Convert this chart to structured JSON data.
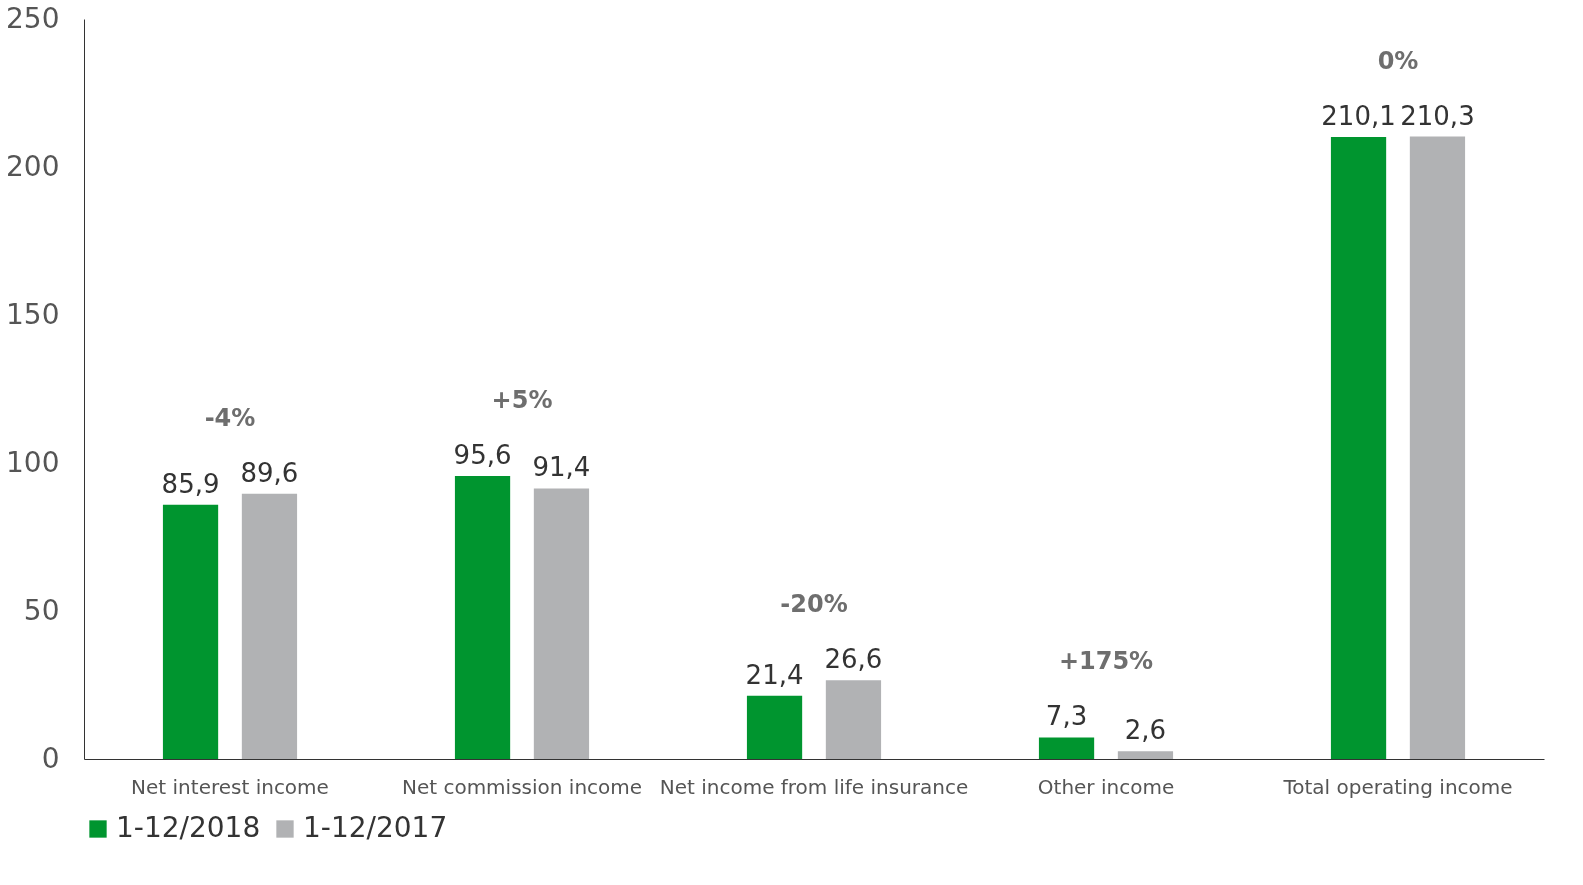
{
  "chart_data": {
    "type": "bar",
    "categories": [
      "Net interest income",
      "Net commission income",
      "Net income from life insurance",
      "Other income",
      "Total operating income"
    ],
    "series": [
      {
        "name": "1-12/2018",
        "color": "#00952f",
        "values": [
          85.9,
          95.6,
          21.4,
          7.3,
          210.1
        ],
        "value_labels": [
          "85,9",
          "95,6",
          "21,4",
          "7,3",
          "210,1"
        ]
      },
      {
        "name": "1-12/2017",
        "color": "#b1b2b4",
        "values": [
          89.6,
          91.4,
          26.6,
          2.6,
          210.3
        ],
        "value_labels": [
          "89,6",
          "91,4",
          "26,6",
          "2,6",
          "210,3"
        ]
      }
    ],
    "annotations": [
      "-4%",
      "+5%",
      "-20%",
      "+175%",
      "0%"
    ],
    "ylim": [
      0,
      250
    ],
    "yticks": [
      0,
      50,
      100,
      150,
      200,
      250
    ],
    "grid": false,
    "legend": "bottom"
  }
}
